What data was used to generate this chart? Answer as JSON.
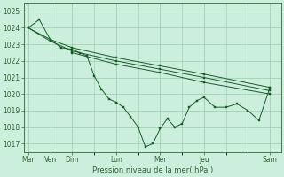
{
  "xlabel": "Pression niveau de la mer( hPa )",
  "background_color": "#cceedd",
  "grid_color": "#99ccaa",
  "line_color": "#1a5c2a",
  "spine_color": "#336633",
  "ylim": [
    1016.5,
    1025.5
  ],
  "yticks": [
    1017,
    1018,
    1019,
    1020,
    1021,
    1022,
    1023,
    1024,
    1025
  ],
  "x_tick_positions": [
    0,
    1,
    2,
    4,
    6,
    8,
    11
  ],
  "x_tick_labels": [
    "Mar",
    "Ven",
    "Dim",
    "Lun",
    "Mer",
    "Jeu",
    "Sam"
  ],
  "xlim": [
    -0.2,
    11.5
  ],
  "series": [
    {
      "x": [
        0,
        0.5,
        1,
        1.5,
        2,
        2.33,
        2.67,
        3,
        3.33,
        3.67,
        4,
        4.33,
        4.67,
        5,
        5.33,
        5.67,
        6,
        6.33,
        6.67,
        7,
        7.33,
        7.67,
        8,
        8.5,
        9,
        9.5,
        10,
        10.5,
        11
      ],
      "y": [
        1024.0,
        1024.5,
        1023.3,
        1022.8,
        1022.7,
        1022.5,
        1022.3,
        1021.1,
        1020.3,
        1019.7,
        1019.5,
        1019.2,
        1018.6,
        1018.0,
        1016.8,
        1017.0,
        1017.9,
        1018.5,
        1018.0,
        1018.2,
        1019.2,
        1019.6,
        1019.8,
        1019.2,
        1019.2,
        1019.4,
        1019.0,
        1018.4,
        1020.4
      ]
    },
    {
      "x": [
        0,
        1,
        2,
        4,
        6,
        8,
        11
      ],
      "y": [
        1024.0,
        1023.3,
        1022.8,
        1022.2,
        1021.7,
        1021.2,
        1020.4
      ]
    },
    {
      "x": [
        0,
        1,
        2,
        4,
        6,
        8,
        11
      ],
      "y": [
        1024.0,
        1023.2,
        1022.6,
        1022.0,
        1021.5,
        1021.0,
        1020.2
      ]
    },
    {
      "x": [
        2,
        4,
        6,
        8,
        11
      ],
      "y": [
        1022.5,
        1021.8,
        1021.3,
        1020.7,
        1020.0
      ]
    }
  ]
}
